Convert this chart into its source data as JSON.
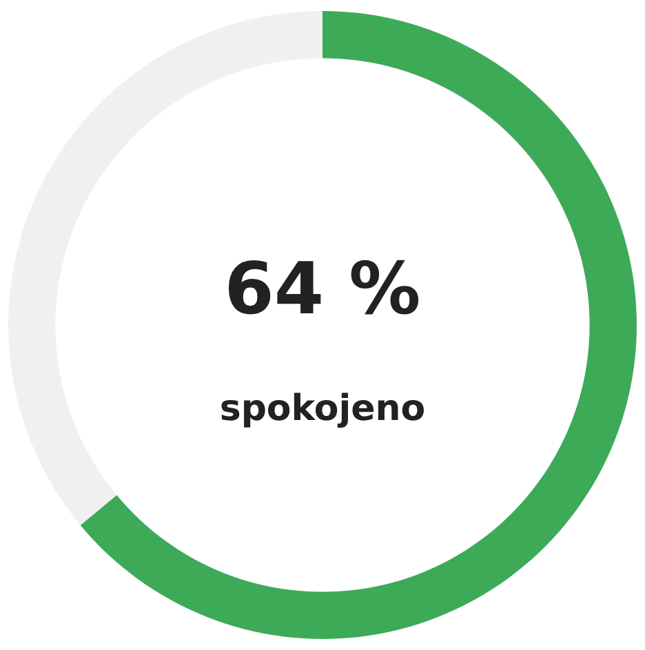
{
  "chart_data": {
    "type": "donut",
    "categories": [
      null,
      null
    ],
    "values": [
      64,
      36
    ],
    "colors": [
      "#3daa58",
      "#f0f0f0"
    ],
    "annotations": [
      "64 %",
      "spokojeno"
    ],
    "legend": false
  }
}
